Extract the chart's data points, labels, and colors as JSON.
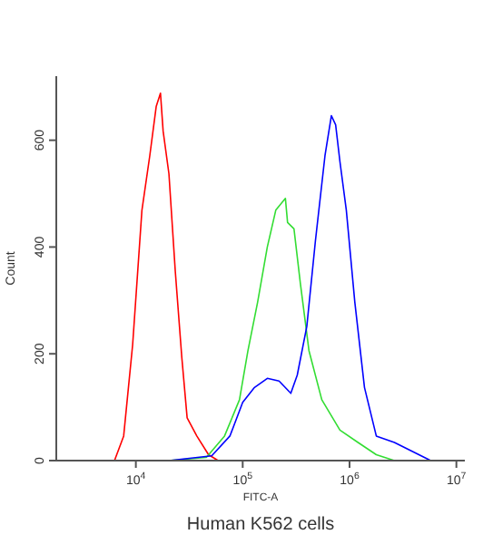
{
  "chart_data": {
    "type": "line",
    "xlabel": "FITC-A",
    "ylabel": "Count",
    "annotations": [
      "Human K562 cells"
    ],
    "log": "x",
    "grid": false,
    "marker": "none",
    "line_style": "solid",
    "xlim": [
      1800,
      12000000
    ],
    "xticks": [
      {
        "value": 10000,
        "label": "10$^{4}$"
      },
      {
        "value": 100000,
        "label": "10$^{5}$"
      },
      {
        "value": 1000000,
        "label": "10$^{6}$"
      },
      {
        "value": 10000000,
        "label": "10$^{7}$"
      }
    ],
    "ylim": [
      0,
      720
    ],
    "yticks": [
      0,
      200,
      400,
      600
    ],
    "series": [
      {
        "color": "#ff0000",
        "x": [
          6310,
          7690,
          9330,
          11400,
          13500,
          15500,
          17000,
          18000,
          20400,
          23400,
          26900,
          30200,
          37200,
          47900,
          58900
        ],
        "values": [
          0,
          46,
          217,
          469,
          571,
          663,
          688,
          617,
          537,
          354,
          194,
          80,
          46,
          11,
          0
        ]
      },
      {
        "color": "#33dd33",
        "x": [
          20400,
          45700,
          67600,
          93300,
          112000,
          138000,
          170000,
          204000,
          251000,
          263000,
          302000,
          347000,
          417000,
          550000,
          813000,
          1200000,
          1780000,
          2630000
        ],
        "values": [
          0,
          6,
          46,
          114,
          206,
          297,
          400,
          469,
          491,
          446,
          434,
          331,
          206,
          114,
          57,
          34,
          11,
          0
        ]
      },
      {
        "color": "#0000ff",
        "x": [
          20400,
          51300,
          75900,
          100000,
          129000,
          170000,
          219000,
          282000,
          324000,
          398000,
          479000,
          589000,
          676000,
          741000,
          813000,
          933000,
          1120000,
          1380000,
          1780000,
          2630000,
          3890000,
          5750000
        ],
        "values": [
          0,
          9,
          46,
          109,
          137,
          154,
          149,
          126,
          160,
          251,
          411,
          571,
          646,
          629,
          560,
          469,
          297,
          137,
          46,
          34,
          17,
          0
        ]
      }
    ]
  }
}
